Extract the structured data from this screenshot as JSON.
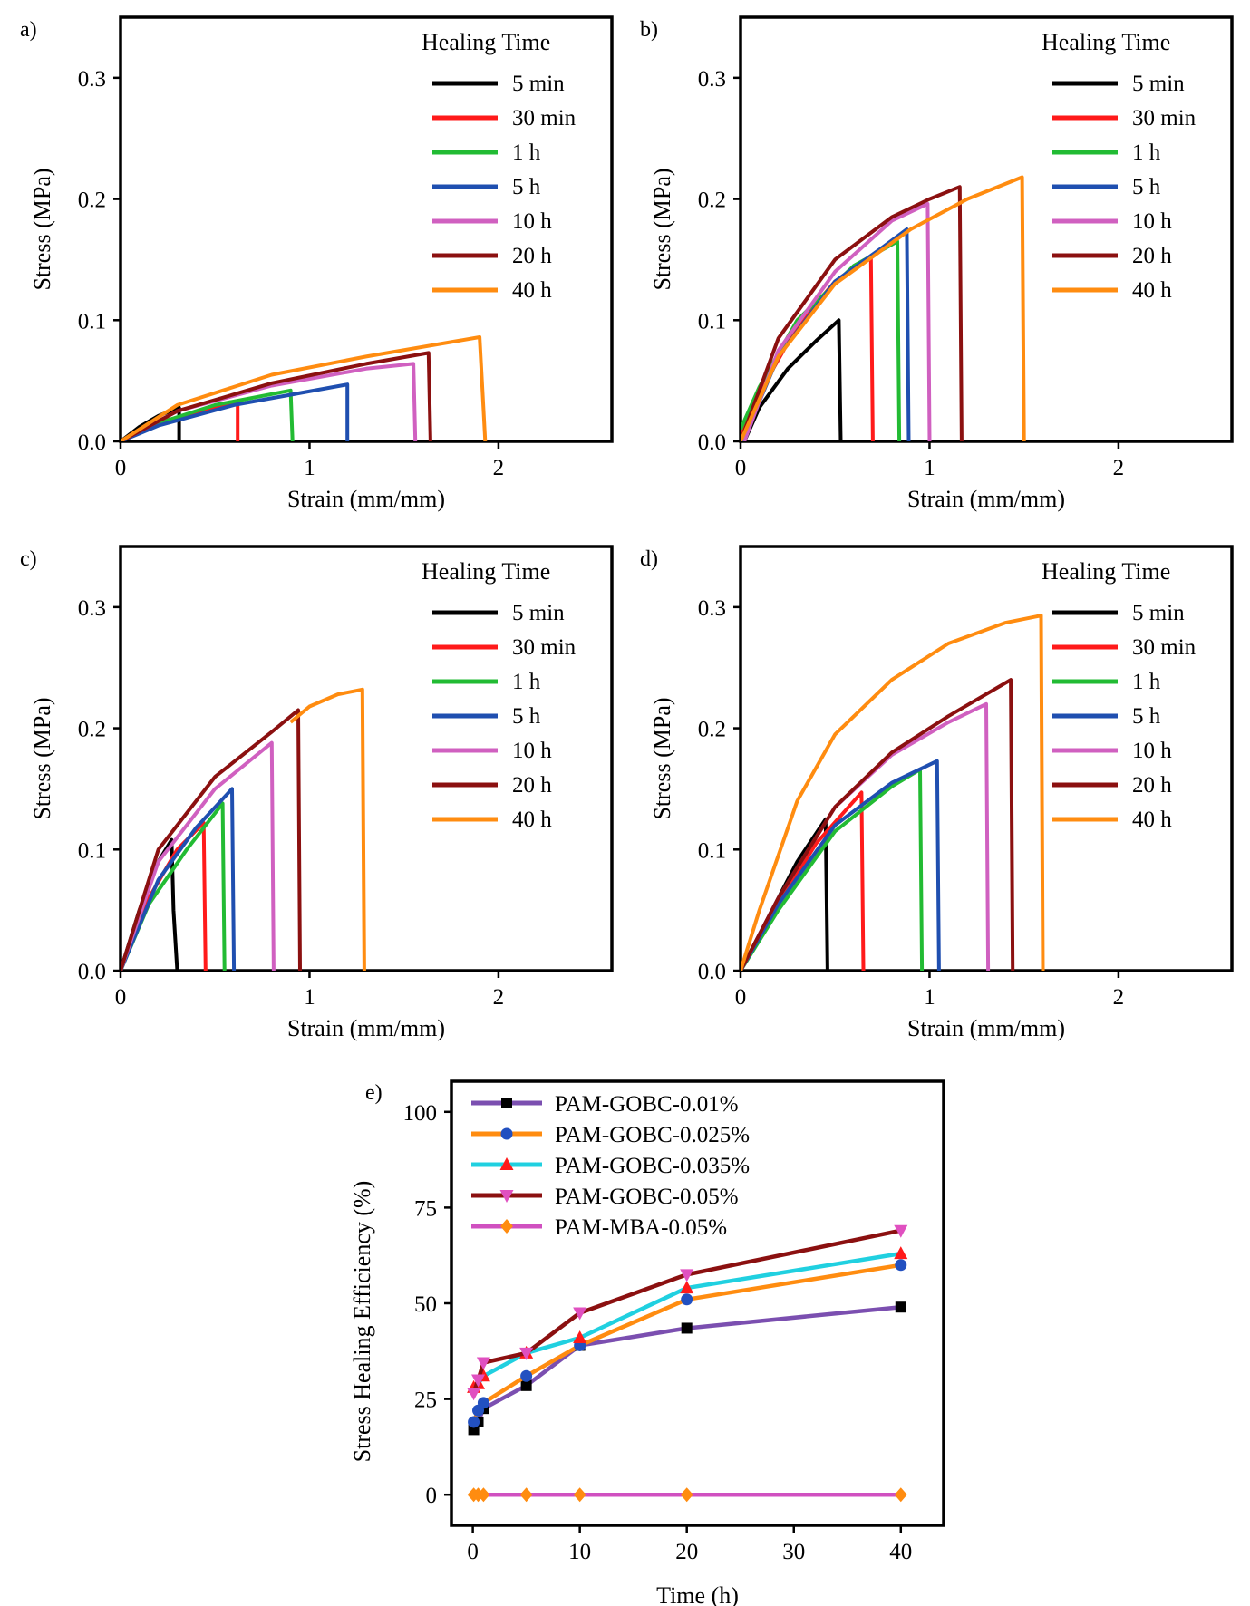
{
  "chart_data": [
    {
      "panel": "a)",
      "type": "line",
      "xlabel": "Strain (mm/mm)",
      "ylabel": "Stress (MPa)",
      "xlim": [
        0,
        2.6
      ],
      "ylim": [
        0,
        0.35
      ],
      "xticks": [
        0,
        1,
        2
      ],
      "xtick_labels": [
        "0",
        "1",
        "2"
      ],
      "yticks": [
        0,
        0.1,
        0.2,
        0.3
      ],
      "ytick_labels": [
        "0.0",
        "0.1",
        "0.2",
        "0.3"
      ],
      "legend_title": "Healing Time",
      "legend_position": "top-right",
      "series": [
        {
          "name": "5 min",
          "color": "#000000",
          "points": [
            [
              0,
              0
            ],
            [
              0.1,
              0.012
            ],
            [
              0.2,
              0.021
            ],
            [
              0.31,
              0.028
            ],
            [
              0.31,
              0
            ]
          ]
        },
        {
          "name": "30 min",
          "color": "#ff1a1a",
          "points": [
            [
              0,
              0
            ],
            [
              0.15,
              0.013
            ],
            [
              0.35,
              0.022
            ],
            [
              0.62,
              0.032
            ],
            [
              0.62,
              0
            ]
          ]
        },
        {
          "name": "1 h",
          "color": "#22bb33",
          "points": [
            [
              0,
              0
            ],
            [
              0.2,
              0.015
            ],
            [
              0.5,
              0.03
            ],
            [
              0.9,
              0.042
            ],
            [
              0.91,
              0
            ]
          ]
        },
        {
          "name": "5 h",
          "color": "#1f4fb0",
          "points": [
            [
              0,
              0
            ],
            [
              0.2,
              0.013
            ],
            [
              0.6,
              0.03
            ],
            [
              1.2,
              0.047
            ],
            [
              1.2,
              0
            ]
          ]
        },
        {
          "name": "10 h",
          "color": "#d060c0",
          "points": [
            [
              0,
              0
            ],
            [
              0.3,
              0.025
            ],
            [
              0.8,
              0.046
            ],
            [
              1.3,
              0.06
            ],
            [
              1.55,
              0.064
            ],
            [
              1.56,
              0
            ]
          ]
        },
        {
          "name": "20 h",
          "color": "#8b1010",
          "points": [
            [
              0,
              0
            ],
            [
              0.3,
              0.025
            ],
            [
              0.8,
              0.048
            ],
            [
              1.3,
              0.064
            ],
            [
              1.63,
              0.073
            ],
            [
              1.64,
              0
            ]
          ]
        },
        {
          "name": "40 h",
          "color": "#ff8c10",
          "points": [
            [
              0,
              0
            ],
            [
              0.3,
              0.03
            ],
            [
              0.8,
              0.055
            ],
            [
              1.3,
              0.07
            ],
            [
              1.9,
              0.086
            ],
            [
              1.93,
              0
            ]
          ]
        }
      ]
    },
    {
      "panel": "b)",
      "type": "line",
      "xlabel": "Strain (mm/mm)",
      "ylabel": "Stress (MPa)",
      "xlim": [
        0,
        2.6
      ],
      "ylim": [
        0,
        0.35
      ],
      "xticks": [
        0,
        1,
        2
      ],
      "xtick_labels": [
        "0",
        "1",
        "2"
      ],
      "yticks": [
        0,
        0.1,
        0.2,
        0.3
      ],
      "ytick_labels": [
        "0.0",
        "0.1",
        "0.2",
        "0.3"
      ],
      "legend_title": "Healing Time",
      "legend_position": "top-right",
      "series": [
        {
          "name": "5 min",
          "color": "#000000",
          "points": [
            [
              0.02,
              0
            ],
            [
              0.1,
              0.028
            ],
            [
              0.25,
              0.06
            ],
            [
              0.4,
              0.083
            ],
            [
              0.52,
              0.1
            ],
            [
              0.53,
              0
            ]
          ]
        },
        {
          "name": "30 min",
          "color": "#ff1a1a",
          "points": [
            [
              0,
              0.005
            ],
            [
              0.1,
              0.04
            ],
            [
              0.3,
              0.095
            ],
            [
              0.5,
              0.132
            ],
            [
              0.69,
              0.152
            ],
            [
              0.7,
              0
            ]
          ]
        },
        {
          "name": "1 h",
          "color": "#22bb33",
          "points": [
            [
              0,
              0.01
            ],
            [
              0.1,
              0.045
            ],
            [
              0.3,
              0.1
            ],
            [
              0.6,
              0.145
            ],
            [
              0.83,
              0.165
            ],
            [
              0.84,
              0
            ]
          ]
        },
        {
          "name": "5 h",
          "color": "#1f4fb0",
          "points": [
            [
              0.01,
              0
            ],
            [
              0.2,
              0.07
            ],
            [
              0.5,
              0.132
            ],
            [
              0.75,
              0.16
            ],
            [
              0.88,
              0.175
            ],
            [
              0.89,
              0
            ]
          ]
        },
        {
          "name": "10 h",
          "color": "#d060c0",
          "points": [
            [
              0.02,
              0
            ],
            [
              0.2,
              0.075
            ],
            [
              0.5,
              0.14
            ],
            [
              0.8,
              0.182
            ],
            [
              0.99,
              0.196
            ],
            [
              1.0,
              0
            ]
          ]
        },
        {
          "name": "20 h",
          "color": "#8b1010",
          "points": [
            [
              0,
              0
            ],
            [
              0.2,
              0.085
            ],
            [
              0.5,
              0.15
            ],
            [
              0.8,
              0.185
            ],
            [
              1.0,
              0.2
            ],
            [
              1.16,
              0.21
            ],
            [
              1.17,
              0
            ]
          ]
        },
        {
          "name": "40 h",
          "color": "#ff8c10",
          "points": [
            [
              0,
              0
            ],
            [
              0.2,
              0.07
            ],
            [
              0.5,
              0.13
            ],
            [
              0.9,
              0.175
            ],
            [
              1.2,
              0.2
            ],
            [
              1.49,
              0.218
            ],
            [
              1.5,
              0
            ]
          ]
        }
      ]
    },
    {
      "panel": "c)",
      "type": "line",
      "xlabel": "Strain (mm/mm)",
      "ylabel": "Stress (MPa)",
      "xlim": [
        0,
        2.6
      ],
      "ylim": [
        0,
        0.35
      ],
      "xticks": [
        0,
        1,
        2
      ],
      "xtick_labels": [
        "0",
        "1",
        "2"
      ],
      "yticks": [
        0,
        0.1,
        0.2,
        0.3
      ],
      "ytick_labels": [
        "0.0",
        "0.1",
        "0.2",
        "0.3"
      ],
      "legend_title": "Healing Time",
      "legend_position": "top-right",
      "series": [
        {
          "name": "5 min",
          "color": "#000000",
          "points": [
            [
              0,
              0
            ],
            [
              0.1,
              0.05
            ],
            [
              0.2,
              0.09
            ],
            [
              0.27,
              0.108
            ],
            [
              0.28,
              0.05
            ],
            [
              0.3,
              0
            ]
          ]
        },
        {
          "name": "30 min",
          "color": "#ff1a1a",
          "points": [
            [
              0,
              0
            ],
            [
              0.15,
              0.06
            ],
            [
              0.3,
              0.1
            ],
            [
              0.44,
              0.122
            ],
            [
              0.45,
              0
            ]
          ]
        },
        {
          "name": "1 h",
          "color": "#22bb33",
          "points": [
            [
              0,
              0
            ],
            [
              0.15,
              0.055
            ],
            [
              0.35,
              0.1
            ],
            [
              0.54,
              0.138
            ],
            [
              0.55,
              0
            ]
          ]
        },
        {
          "name": "5 h",
          "color": "#1f4fb0",
          "points": [
            [
              0,
              0
            ],
            [
              0.2,
              0.075
            ],
            [
              0.4,
              0.118
            ],
            [
              0.59,
              0.15
            ],
            [
              0.6,
              0
            ]
          ]
        },
        {
          "name": "10 h",
          "color": "#d060c0",
          "points": [
            [
              0,
              0
            ],
            [
              0.2,
              0.09
            ],
            [
              0.5,
              0.15
            ],
            [
              0.8,
              0.188
            ],
            [
              0.81,
              0
            ]
          ]
        },
        {
          "name": "20 h",
          "color": "#8b1010",
          "points": [
            [
              0,
              0
            ],
            [
              0.2,
              0.1
            ],
            [
              0.5,
              0.16
            ],
            [
              0.8,
              0.197
            ],
            [
              0.94,
              0.215
            ],
            [
              0.95,
              0
            ]
          ]
        },
        {
          "name": "40 h",
          "color": "#ff8c10",
          "points": [
            [
              0.9,
              0.205
            ],
            [
              1.0,
              0.218
            ],
            [
              1.15,
              0.228
            ],
            [
              1.28,
              0.232
            ],
            [
              1.29,
              0
            ]
          ]
        }
      ]
    },
    {
      "panel": "d)",
      "type": "line",
      "xlabel": "Strain (mm/mm)",
      "ylabel": "Stress (MPa)",
      "xlim": [
        0,
        2.6
      ],
      "ylim": [
        0,
        0.35
      ],
      "xticks": [
        0,
        1,
        2
      ],
      "xtick_labels": [
        "0",
        "1",
        "2"
      ],
      "yticks": [
        0,
        0.1,
        0.2,
        0.3
      ],
      "ytick_labels": [
        "0.0",
        "0.1",
        "0.2",
        "0.3"
      ],
      "legend_title": "Healing Time",
      "legend_position": "top-right",
      "series": [
        {
          "name": "5 min",
          "color": "#000000",
          "points": [
            [
              0,
              0
            ],
            [
              0.15,
              0.045
            ],
            [
              0.3,
              0.09
            ],
            [
              0.45,
              0.125
            ],
            [
              0.46,
              0
            ]
          ]
        },
        {
          "name": "30 min",
          "color": "#ff1a1a",
          "points": [
            [
              0,
              0
            ],
            [
              0.2,
              0.055
            ],
            [
              0.4,
              0.105
            ],
            [
              0.64,
              0.147
            ],
            [
              0.65,
              0
            ]
          ]
        },
        {
          "name": "1 h",
          "color": "#22bb33",
          "points": [
            [
              0,
              0
            ],
            [
              0.2,
              0.05
            ],
            [
              0.5,
              0.115
            ],
            [
              0.8,
              0.152
            ],
            [
              0.95,
              0.166
            ],
            [
              0.96,
              0
            ]
          ]
        },
        {
          "name": "5 h",
          "color": "#1f4fb0",
          "points": [
            [
              0,
              0
            ],
            [
              0.2,
              0.055
            ],
            [
              0.5,
              0.12
            ],
            [
              0.8,
              0.155
            ],
            [
              1.04,
              0.173
            ],
            [
              1.05,
              0
            ]
          ]
        },
        {
          "name": "10 h",
          "color": "#d060c0",
          "points": [
            [
              0,
              0
            ],
            [
              0.2,
              0.06
            ],
            [
              0.5,
              0.135
            ],
            [
              0.8,
              0.178
            ],
            [
              1.1,
              0.205
            ],
            [
              1.3,
              0.22
            ],
            [
              1.31,
              0
            ]
          ]
        },
        {
          "name": "20 h",
          "color": "#8b1010",
          "points": [
            [
              0,
              0
            ],
            [
              0.2,
              0.06
            ],
            [
              0.5,
              0.135
            ],
            [
              0.8,
              0.18
            ],
            [
              1.1,
              0.21
            ],
            [
              1.43,
              0.24
            ],
            [
              1.44,
              0
            ]
          ]
        },
        {
          "name": "40 h",
          "color": "#ff8c10",
          "points": [
            [
              0,
              0
            ],
            [
              0.1,
              0.05
            ],
            [
              0.3,
              0.14
            ],
            [
              0.5,
              0.195
            ],
            [
              0.8,
              0.24
            ],
            [
              1.1,
              0.27
            ],
            [
              1.4,
              0.287
            ],
            [
              1.59,
              0.293
            ],
            [
              1.6,
              0
            ]
          ]
        }
      ]
    },
    {
      "panel": "e)",
      "type": "line",
      "xlabel": "Time (h)",
      "ylabel": "Stress Healing Efficiency (%)",
      "xlim": [
        -2,
        44
      ],
      "ylim": [
        -8,
        108
      ],
      "xticks": [
        0,
        10,
        20,
        30,
        40
      ],
      "xtick_labels": [
        "0",
        "10",
        "20",
        "30",
        "40"
      ],
      "yticks": [
        0,
        25,
        50,
        75,
        100
      ],
      "ytick_labels": [
        "0",
        "25",
        "50",
        "75",
        "100"
      ],
      "legend_position": "top-left",
      "series": [
        {
          "name": "PAM-GOBC-0.01%",
          "color": "#7b4fb0",
          "marker_color": "#000000",
          "marker": "square",
          "x": [
            0.083,
            0.5,
            1,
            5,
            10,
            20,
            40
          ],
          "values": [
            17,
            19,
            22.5,
            28.5,
            39,
            43.5,
            49
          ]
        },
        {
          "name": "PAM-GOBC-0.025%",
          "color": "#ff8c10",
          "marker_color": "#2250c0",
          "marker": "circle",
          "x": [
            0.083,
            0.5,
            1,
            5,
            10,
            20,
            40
          ],
          "values": [
            19,
            22,
            24,
            31,
            39,
            51,
            60
          ]
        },
        {
          "name": "PAM-GOBC-0.035%",
          "color": "#20d0e0",
          "marker_color": "#ff1a1a",
          "marker": "triangle-up",
          "x": [
            0.083,
            0.5,
            1,
            5,
            10,
            20,
            40
          ],
          "values": [
            28,
            29,
            31,
            37,
            41,
            54,
            63
          ]
        },
        {
          "name": "PAM-GOBC-0.05%",
          "color": "#8b1010",
          "marker_color": "#e050c0",
          "marker": "triangle-down",
          "x": [
            0.083,
            0.5,
            1,
            5,
            10,
            20,
            40
          ],
          "values": [
            26.5,
            30,
            34.5,
            37,
            47.5,
            57.5,
            69
          ]
        },
        {
          "name": "PAM-MBA-0.05%",
          "color": "#d050c0",
          "marker_color": "#ff8c10",
          "marker": "diamond",
          "x": [
            0.083,
            0.5,
            1,
            5,
            10,
            20,
            40
          ],
          "values": [
            0,
            0,
            0,
            0,
            0,
            0,
            0
          ]
        }
      ]
    }
  ]
}
